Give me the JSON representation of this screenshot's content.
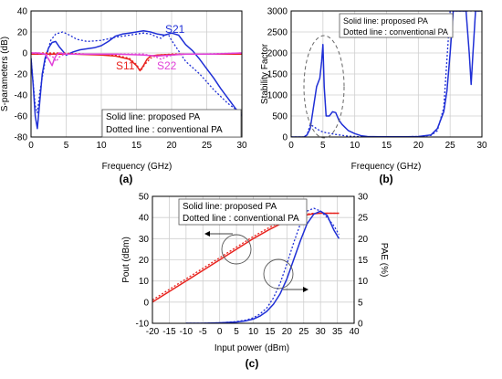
{
  "figure": {
    "colors": {
      "blue": "#1f2fd6",
      "red": "#e8231e",
      "magenta": "#e040d8",
      "axis": "#000000",
      "grid": "#cfcfcf",
      "legend_border": "#555555"
    }
  },
  "chart_data": [
    {
      "id": "a",
      "panel_label": "(a)",
      "type": "line",
      "xlabel": "Frequency (GHz)",
      "ylabel": "S-parameters (dB)",
      "xlim": [
        0,
        30
      ],
      "ylim": [
        -80,
        40
      ],
      "xticks": [
        "0",
        "5",
        "10",
        "15",
        "20",
        "25",
        "30"
      ],
      "yticks": [
        "-80",
        "-60",
        "-40",
        "-20",
        "0",
        "20",
        "40"
      ],
      "grid": true,
      "legend_lines": [
        "Solid line: proposed PA",
        "Dotted line : conventional PA"
      ],
      "annotations": [
        "S21",
        "S11",
        "S22"
      ],
      "series": [
        {
          "name": "S21",
          "color": "#1f2fd6",
          "dash": false,
          "x": [
            0,
            0.3,
            0.6,
            0.9,
            1.2,
            1.6,
            2.0,
            2.5,
            3.0,
            3.5,
            4.0,
            5,
            6,
            7,
            8,
            9,
            10,
            11,
            12,
            13,
            14,
            15,
            16,
            17,
            18,
            19,
            20,
            21,
            22,
            23,
            24,
            25,
            26,
            27,
            28,
            29,
            30
          ],
          "y": [
            -5,
            -30,
            -60,
            -72,
            -50,
            -20,
            -5,
            5,
            10,
            11,
            6,
            -2,
            1,
            3,
            4,
            5,
            7,
            11,
            16,
            18,
            19,
            20,
            21,
            20,
            18,
            17,
            19,
            17,
            8,
            2,
            -6,
            -15,
            -24,
            -34,
            -43,
            -52,
            -60
          ]
        },
        {
          "name": "S21",
          "color": "#1f2fd6",
          "dash": true,
          "x": [
            0,
            0.3,
            0.6,
            0.9,
            1.3,
            2.0,
            2.8,
            3.5,
            4.5,
            5.5,
            6.5,
            8,
            10,
            12,
            14,
            15,
            16,
            17,
            18,
            18.5,
            19,
            19.5,
            20,
            22,
            24,
            26,
            28,
            30
          ],
          "y": [
            -5,
            -28,
            -50,
            -57,
            -35,
            -8,
            12,
            18,
            20,
            17,
            13,
            11,
            12,
            15,
            17,
            18,
            19,
            18,
            15,
            14,
            17,
            18,
            12,
            -8,
            -20,
            -35,
            -48,
            -58
          ]
        },
        {
          "name": "S11",
          "color": "#e8231e",
          "dash": false,
          "x": [
            0,
            2,
            4,
            6,
            8,
            10,
            12,
            14,
            15,
            15.5,
            16,
            16.5,
            17,
            18,
            20,
            22,
            24,
            26,
            28,
            30
          ],
          "y": [
            -1,
            -1,
            -1,
            -1,
            -1.5,
            -2,
            -3,
            -6,
            -12,
            -17,
            -12,
            -6,
            -3,
            -2,
            -1.5,
            -1,
            -1,
            -1,
            -1,
            -1
          ]
        },
        {
          "name": "S11",
          "color": "#e8231e",
          "dash": true,
          "x": [
            0,
            4,
            8,
            12,
            14,
            15,
            15.6,
            16.2,
            17,
            18,
            20,
            24,
            30
          ],
          "y": [
            0,
            0,
            -1,
            -2,
            -5,
            -11,
            -17,
            -11,
            -5,
            -2,
            -1,
            -1,
            -1
          ]
        },
        {
          "name": "S22",
          "color": "#e040d8",
          "dash": false,
          "x": [
            0,
            1,
            2,
            2.5,
            3,
            3.3,
            3.6,
            4,
            5,
            8,
            12,
            16,
            18,
            20,
            22,
            26,
            30
          ],
          "y": [
            0,
            0,
            -1,
            -6,
            -12,
            -6,
            -2,
            0,
            -1,
            -1,
            -1,
            -2,
            -3,
            -2,
            -1,
            -1,
            0
          ]
        },
        {
          "name": "S22",
          "color": "#e040d8",
          "dash": true,
          "x": [
            0,
            2,
            3,
            3.6,
            4,
            4.5,
            5,
            6,
            10,
            16,
            17.5,
            18.5,
            19.5,
            21,
            24,
            30
          ],
          "y": [
            0,
            -1,
            -3,
            -8,
            -4,
            -2,
            -1,
            -1,
            -1,
            -1,
            -3,
            -6,
            -3,
            -1,
            -1,
            0
          ]
        }
      ]
    },
    {
      "id": "b",
      "panel_label": "(b)",
      "type": "line",
      "xlabel": "Frequency (GHz)",
      "ylabel": "Stability Factor",
      "xlim": [
        0,
        30
      ],
      "ylim": [
        0,
        3000
      ],
      "xticks": [
        "0",
        "5",
        "10",
        "15",
        "20",
        "25",
        "30"
      ],
      "yticks": [
        "0",
        "500",
        "1000",
        "1500",
        "2000",
        "2500",
        "3000"
      ],
      "grid": true,
      "legend_lines": [
        "Solid line: proposed PA",
        "Dotted line : conventional PA"
      ],
      "series": [
        {
          "name": "proposed PA",
          "color": "#1f2fd6",
          "dash": false,
          "x": [
            0,
            1,
            2,
            2.5,
            3,
            3.5,
            4,
            4.5,
            4.8,
            5,
            5.2,
            5.5,
            6,
            6.5,
            7,
            7.5,
            8,
            9,
            10,
            11,
            12,
            14,
            16,
            18,
            20,
            22,
            23,
            24,
            24.5,
            25,
            25.5,
            26,
            27,
            27.5,
            28,
            28.3,
            28.6,
            29,
            29.5,
            30
          ],
          "y": [
            0,
            0,
            0,
            50,
            200,
            700,
            1200,
            1400,
            1800,
            2200,
            1200,
            500,
            500,
            600,
            580,
            400,
            300,
            150,
            80,
            30,
            10,
            5,
            5,
            5,
            10,
            50,
            200,
            600,
            1100,
            2000,
            3000,
            3000,
            3000,
            3000,
            2000,
            1250,
            2000,
            3000,
            3000,
            3000
          ]
        },
        {
          "name": "conventional PA",
          "color": "#1f2fd6",
          "dash": true,
          "x": [
            0,
            2,
            2.5,
            3,
            3.5,
            4,
            4.5,
            5,
            5.5,
            6,
            7,
            8,
            9,
            10,
            12,
            16,
            20,
            22,
            23,
            24,
            25,
            26,
            27,
            28,
            28.5,
            29,
            30
          ],
          "y": [
            0,
            0,
            50,
            300,
            250,
            200,
            150,
            120,
            100,
            90,
            60,
            40,
            20,
            10,
            5,
            5,
            10,
            40,
            150,
            700,
            3000,
            3000,
            3000,
            3000,
            3000,
            3000,
            3000
          ]
        }
      ]
    },
    {
      "id": "c",
      "panel_label": "(c)",
      "type": "line",
      "xlabel": "Input power (dBm)",
      "ylabel": "Pout (dBm)",
      "y2label": "PAE (%)",
      "xlim": [
        -20,
        40
      ],
      "ylim": [
        -10,
        50
      ],
      "y2lim": [
        0,
        30
      ],
      "xticks": [
        "-20",
        "-15",
        "-10",
        "-5",
        "0",
        "5",
        "10",
        "15",
        "20",
        "25",
        "30",
        "35",
        "40"
      ],
      "yticks": [
        "-10",
        "0",
        "10",
        "20",
        "30",
        "40",
        "50"
      ],
      "y2ticks": [
        "0",
        "5",
        "10",
        "15",
        "20",
        "25",
        "30"
      ],
      "grid": true,
      "legend_lines": [
        "Solid line: proposed PA",
        "Dotted line : conventional PA"
      ],
      "series": [
        {
          "name": "Pout proposed",
          "color": "#e8231e",
          "dash": false,
          "axis": "left",
          "x": [
            -20,
            -15,
            -10,
            -5,
            0,
            5,
            10,
            15,
            20,
            25,
            28,
            30,
            32,
            34,
            35.5
          ],
          "y": [
            0,
            5,
            10,
            15,
            20,
            25,
            30,
            34.5,
            38.5,
            41,
            41.8,
            42,
            42,
            42,
            42
          ]
        },
        {
          "name": "Pout conventional",
          "color": "#e8231e",
          "dash": true,
          "axis": "left",
          "x": [
            -20,
            -15,
            -10,
            -5,
            0,
            5,
            10,
            15,
            20,
            25,
            28,
            30,
            32,
            34,
            35.5
          ],
          "y": [
            1,
            6,
            11,
            16,
            21,
            26,
            31,
            35.5,
            39.5,
            41.5,
            42,
            42,
            42,
            42,
            42
          ]
        },
        {
          "name": "PAE proposed",
          "color": "#1f2fd6",
          "dash": false,
          "axis": "right",
          "x": [
            -10,
            -5,
            0,
            5,
            8,
            10,
            12,
            14,
            16,
            18,
            20,
            22,
            24,
            26,
            28,
            30,
            32,
            34,
            35.5
          ],
          "y": [
            0,
            0,
            0.1,
            0.3,
            0.6,
            1.0,
            1.7,
            2.8,
            4.5,
            7.0,
            10.5,
            15,
            19.5,
            23.5,
            25.8,
            26.5,
            25.5,
            22,
            20
          ]
        },
        {
          "name": "PAE conventional",
          "color": "#1f2fd6",
          "dash": true,
          "axis": "right",
          "x": [
            -10,
            -5,
            0,
            5,
            8,
            10,
            12,
            14,
            16,
            18,
            20,
            22,
            24,
            26,
            28,
            30,
            32,
            34,
            35.5
          ],
          "y": [
            0,
            0,
            0.1,
            0.4,
            0.8,
            1.3,
            2.2,
            3.6,
            6.0,
            9.5,
            14,
            19,
            23.5,
            26.5,
            27.2,
            26.5,
            25,
            23,
            21
          ]
        }
      ]
    }
  ]
}
